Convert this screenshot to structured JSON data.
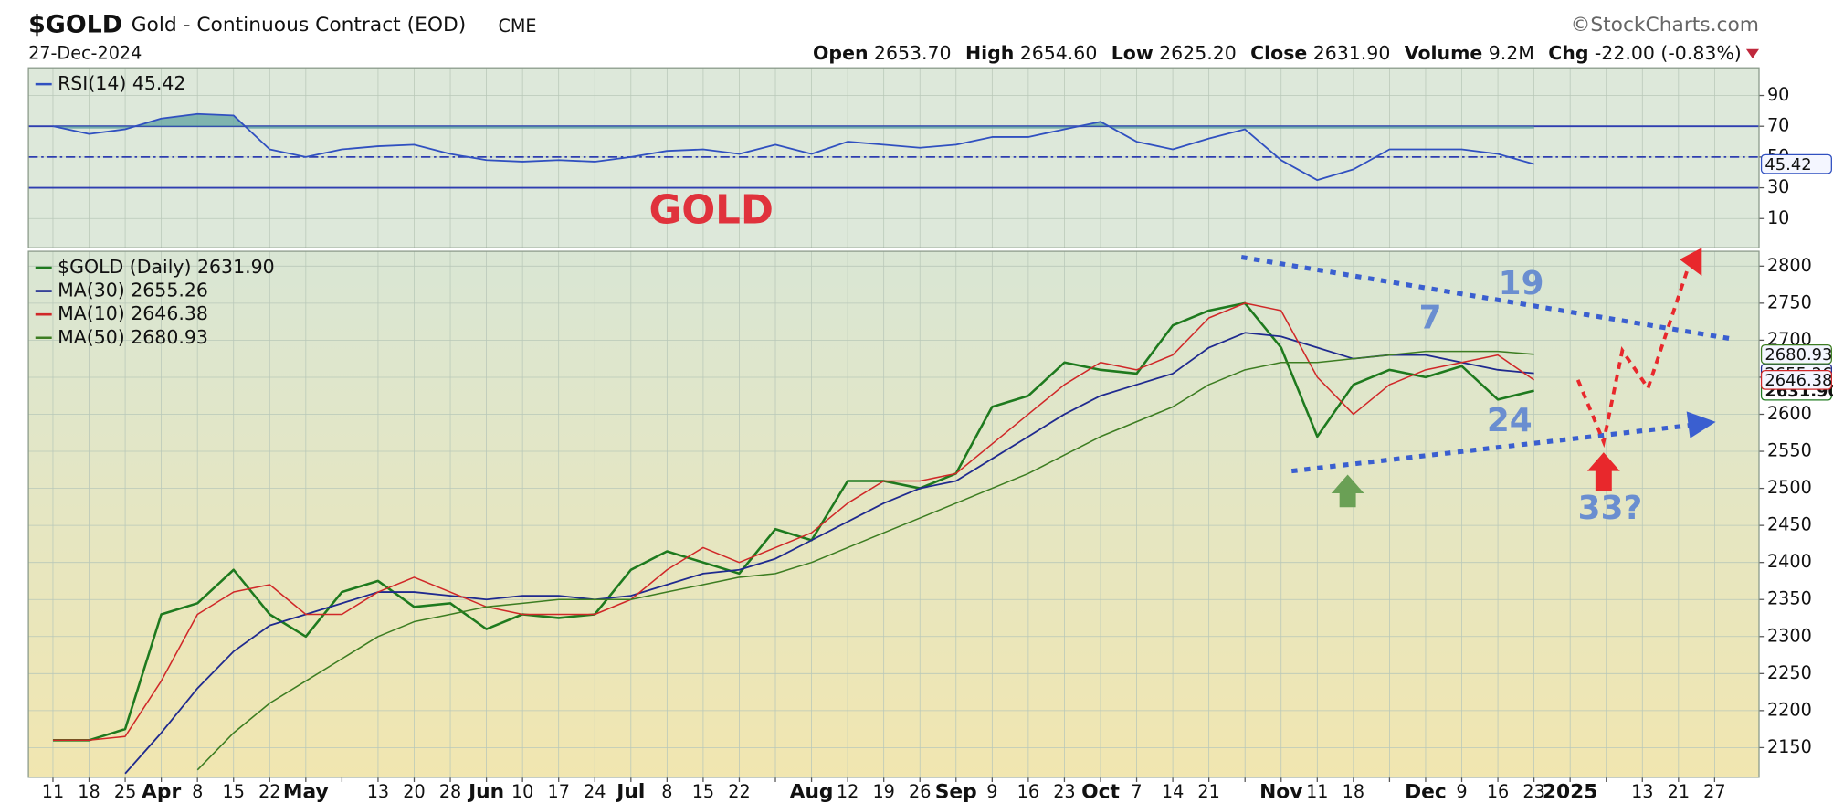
{
  "header": {
    "symbol": "$GOLD",
    "name": "Gold - Continuous Contract (EOD)",
    "exchange": "CME",
    "source": "©StockCharts.com",
    "date": "27-Dec-2024",
    "quote": [
      [
        "Open",
        "2653.70"
      ],
      [
        "High",
        "2654.60"
      ],
      [
        "Low",
        "2625.20"
      ],
      [
        "Close",
        "2631.90"
      ],
      [
        "Volume",
        "9.2M"
      ],
      [
        "Chg",
        "-22.00 (-0.83%)"
      ]
    ]
  },
  "chart_data": [
    {
      "type": "line",
      "ylim": [
        -9,
        108
      ],
      "yticks": [
        10,
        30,
        50,
        70,
        90
      ],
      "hlines": [
        {
          "value": 70,
          "style": "solid"
        },
        {
          "value": 50,
          "style": "dashdot"
        },
        {
          "value": 30,
          "style": "solid"
        }
      ],
      "overbought_fill": "#5fa3a0",
      "annotations": [
        "GOLD"
      ],
      "series": [
        {
          "name": "RSI(14) 45.42",
          "color": "#3050c0",
          "last_label": "45.42",
          "values": [
            70,
            65,
            68,
            75,
            78,
            77,
            55,
            50,
            55,
            57,
            58,
            52,
            48,
            47,
            48,
            47,
            50,
            54,
            55,
            52,
            58,
            52,
            60,
            58,
            56,
            58,
            63,
            63,
            68,
            73,
            60,
            55,
            62,
            68,
            48,
            35,
            42,
            55,
            55,
            55,
            52,
            45.42,
            null,
            null,
            null,
            null,
            null
          ]
        }
      ]
    },
    {
      "type": "line",
      "categories": [
        "11",
        "18",
        "25",
        "Apr",
        "8",
        "15",
        "22",
        "May",
        null,
        "13",
        "20",
        "28",
        "Jun",
        "10",
        "17",
        "24",
        "Jul",
        "8",
        "15",
        "22",
        null,
        "Aug",
        "12",
        "19",
        "26",
        "Sep",
        "9",
        "16",
        "23",
        "Oct",
        "7",
        "14",
        "21",
        null,
        "Nov",
        "11",
        "18",
        null,
        "Dec",
        "9",
        "16",
        "23",
        "2025",
        null,
        "13",
        "21",
        "27"
      ],
      "ylim": [
        2110,
        2820
      ],
      "yticks": [
        2150,
        2200,
        2250,
        2300,
        2350,
        2400,
        2450,
        2500,
        2550,
        2600,
        2650,
        2700,
        2750,
        2800
      ],
      "grid": true,
      "annotations": [
        "19",
        "7",
        "24",
        "33?"
      ],
      "series": [
        {
          "name": "$GOLD (Daily) 2631.90",
          "color": "#1e7a1e",
          "width": 2,
          "last_label": "2631.90",
          "values": [
            2160,
            2160,
            2175,
            2330,
            2345,
            2390,
            2330,
            2300,
            2360,
            2375,
            2340,
            2345,
            2310,
            2330,
            2325,
            2330,
            2390,
            2415,
            2400,
            2385,
            2445,
            2430,
            2510,
            2510,
            2500,
            2520,
            2610,
            2625,
            2670,
            2660,
            2655,
            2720,
            2740,
            2750,
            2690,
            2570,
            2640,
            2660,
            2650,
            2665,
            2620,
            2631.9,
            null,
            null,
            null,
            null,
            null
          ]
        },
        {
          "name": "MA(30) 2655.26",
          "color": "#1f2a8f",
          "width": 1.4,
          "last_label": "2655.26",
          "values": [
            null,
            null,
            2115,
            2170,
            2230,
            2280,
            2315,
            2330,
            2345,
            2360,
            2360,
            2355,
            2350,
            2355,
            2355,
            2350,
            2355,
            2370,
            2385,
            2390,
            2405,
            2430,
            2455,
            2480,
            2500,
            2510,
            2540,
            2570,
            2600,
            2625,
            2640,
            2655,
            2690,
            2710,
            2705,
            2690,
            2675,
            2680,
            2680,
            2670,
            2660,
            2655.26,
            null,
            null,
            null,
            null,
            null
          ]
        },
        {
          "name": "MA(10) 2646.38",
          "color": "#d02828",
          "width": 1.2,
          "last_label": "2646.38",
          "values": [
            2160,
            2160,
            2165,
            2240,
            2330,
            2360,
            2370,
            2330,
            2330,
            2360,
            2380,
            2360,
            2340,
            2330,
            2330,
            2330,
            2350,
            2390,
            2420,
            2400,
            2420,
            2440,
            2480,
            2510,
            2510,
            2520,
            2560,
            2600,
            2640,
            2670,
            2660,
            2680,
            2730,
            2750,
            2740,
            2650,
            2600,
            2640,
            2660,
            2670,
            2680,
            2646.38,
            null,
            null,
            null,
            null,
            null
          ]
        },
        {
          "name": "MA(50) 2680.93",
          "color": "#3d7d22",
          "width": 1.2,
          "last_label": "2680.93",
          "values": [
            null,
            null,
            null,
            null,
            2120,
            2170,
            2210,
            2240,
            2270,
            2300,
            2320,
            2330,
            2340,
            2345,
            2350,
            2350,
            2350,
            2360,
            2370,
            2380,
            2385,
            2400,
            2420,
            2440,
            2460,
            2480,
            2500,
            2520,
            2545,
            2570,
            2590,
            2610,
            2640,
            2660,
            2670,
            2670,
            2675,
            2680,
            2685,
            2685,
            2685,
            2680.93,
            null,
            null,
            null,
            null,
            null
          ]
        }
      ]
    }
  ]
}
